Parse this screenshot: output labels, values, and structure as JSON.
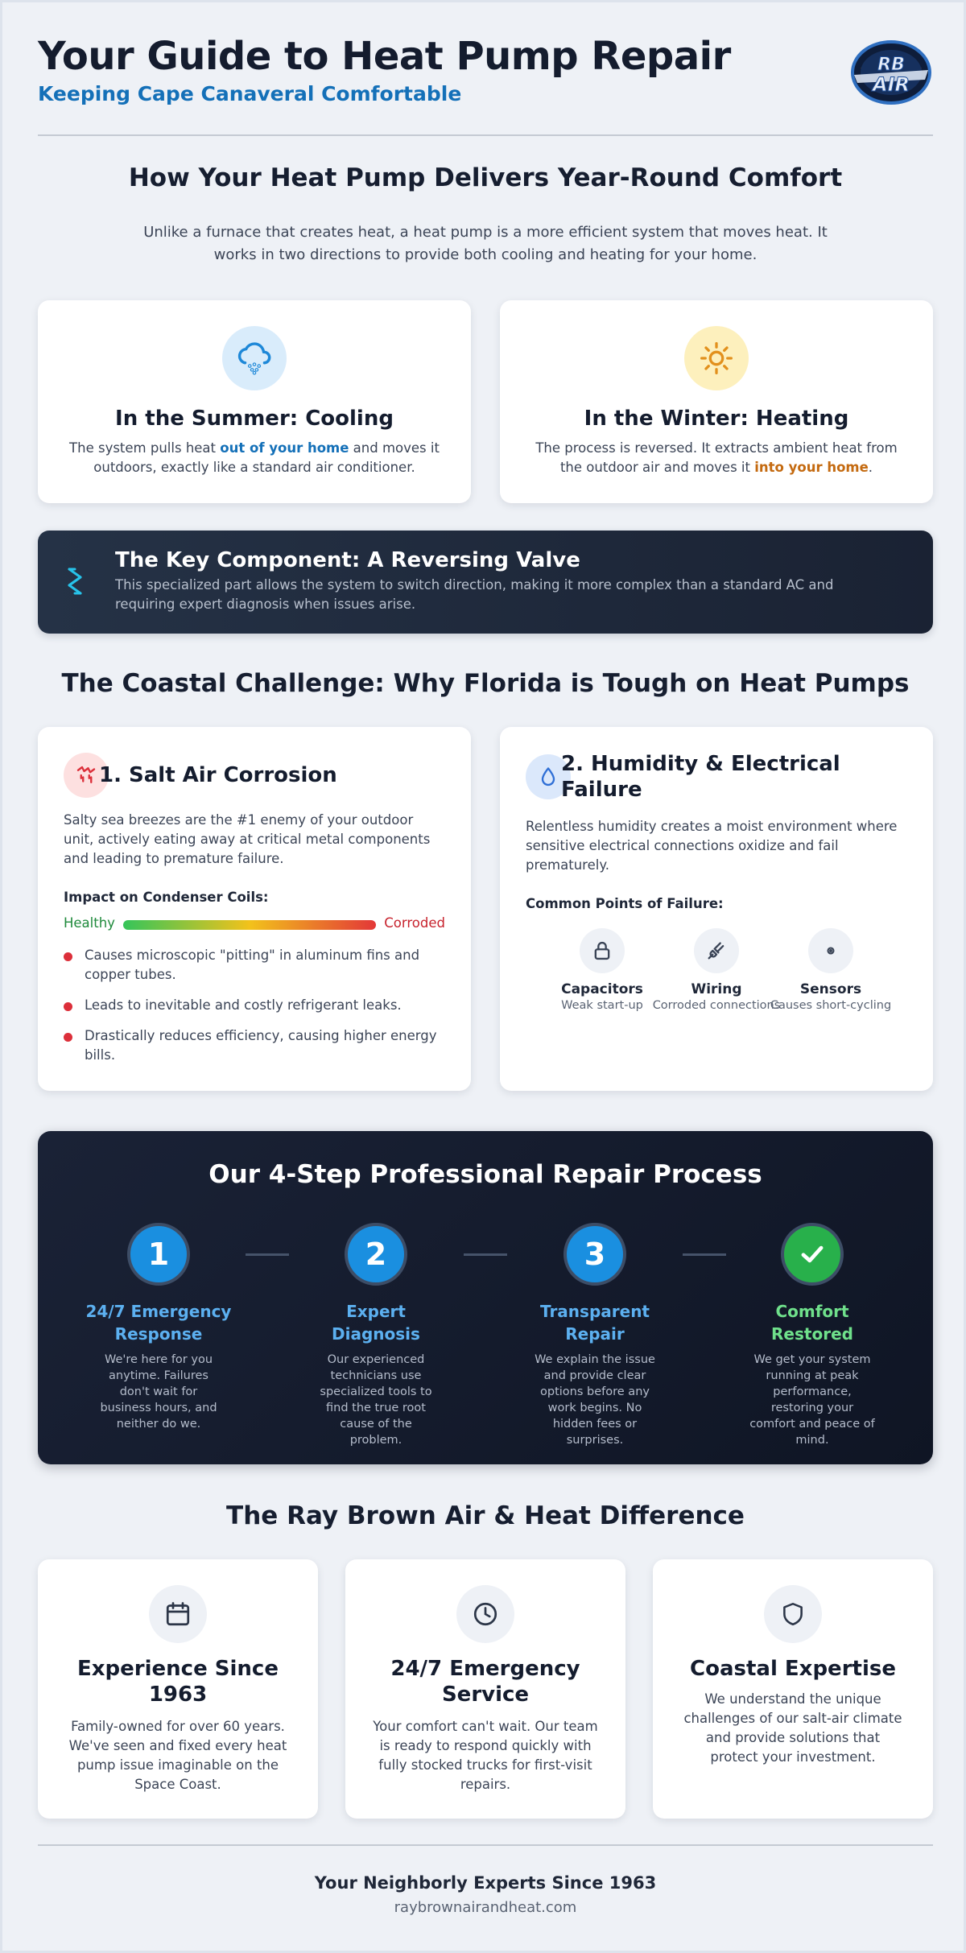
{
  "header": {
    "title": "Your Guide to Heat Pump Repair",
    "subtitle": "Keeping Cape Canaveral Comfortable",
    "logo_text": "RB AIR"
  },
  "how": {
    "title": "How Your Heat Pump Delivers Year-Round Comfort",
    "lead": "Unlike a furnace that creates heat, a heat pump is a more efficient system that moves heat. It works in two directions to provide both cooling and heating for your home.",
    "summer": {
      "icon": "cloud-snow-icon",
      "title": "In the Summer: Cooling",
      "text_before": "The system pulls heat ",
      "highlight": "out of your home",
      "text_after": " and moves it outdoors, exactly like a standard air conditioner."
    },
    "winter": {
      "icon": "sun-icon",
      "title": "In the Winter: Heating",
      "text_before": "The process is reversed. It extracts ambient heat from the outdoor air and moves it ",
      "highlight": "into your home",
      "text_after": "."
    },
    "valve": {
      "icon": "reversing-arrows-icon",
      "title": "The Key Component: A Reversing Valve",
      "text": "This specialized part allows the system to switch direction, making it more complex than a standard AC and requiring expert diagnosis when issues arise."
    }
  },
  "coastal": {
    "title": "The Coastal Challenge: Why Florida is Tough on Heat Pumps",
    "salt": {
      "icon": "corrosion-icon",
      "title": "1. Salt Air Corrosion",
      "text": "Salty sea breezes are the #1 enemy of your outdoor unit, actively eating away at critical metal components and leading to premature failure.",
      "impact_label": "Impact on Condenser Coils:",
      "scale_left": "Healthy",
      "scale_right": "Corroded",
      "bullets": [
        "Causes microscopic \"pitting\" in aluminum fins and copper tubes.",
        "Leads to inevitable and costly refrigerant leaks.",
        "Drastically reduces efficiency, causing higher energy bills."
      ]
    },
    "humidity": {
      "icon": "droplet-icon",
      "title": "2. Humidity & Electrical Failure",
      "text": "Relentless humidity creates a moist environment where sensitive electrical connections oxidize and fail prematurely.",
      "points_label": "Common Points of Failure:",
      "points": [
        {
          "icon": "lock-icon",
          "label": "Capacitors",
          "desc": "Weak start-up"
        },
        {
          "icon": "plug-icon",
          "label": "Wiring",
          "desc": "Corroded connections"
        },
        {
          "icon": "eye-icon",
          "label": "Sensors",
          "desc": "Causes short-cycling"
        }
      ]
    }
  },
  "process": {
    "title": "Our 4-Step Professional Repair Process",
    "steps": [
      {
        "num": "1",
        "label": "24/7 Emergency Response",
        "desc": "We're here for you anytime. Failures don't wait for business hours, and neither do we."
      },
      {
        "num": "2",
        "label": "Expert Diagnosis",
        "desc": "Our experienced technicians use specialized tools to find the true root cause of the problem."
      },
      {
        "num": "3",
        "label": "Transparent Repair",
        "desc": "We explain the issue and provide clear options before any work begins. No hidden fees or surprises."
      },
      {
        "num": "",
        "icon": "checkmark-icon",
        "label": "Comfort Restored",
        "desc": "We get your system running at peak performance, restoring your comfort and peace of mind."
      }
    ]
  },
  "difference": {
    "title": "The Ray Brown Air & Heat Difference",
    "items": [
      {
        "icon": "calendar-icon",
        "title": "Experience Since 1963",
        "desc": "Family-owned for over 60 years. We've seen and fixed every heat pump issue imaginable on the Space Coast."
      },
      {
        "icon": "clock-icon",
        "title": "24/7 Emergency Service",
        "desc": "Your comfort can't wait. Our team is ready to respond quickly with fully stocked trucks for first-visit repairs."
      },
      {
        "icon": "shield-icon",
        "title": "Coastal Expertise",
        "desc": "We understand the unique challenges of our salt-air climate and provide solutions that protect your investment."
      }
    ]
  },
  "footer": {
    "tagline": "Your Neighborly Experts Since 1963",
    "url": "raybrownairandheat.com"
  },
  "colors": {
    "accent_blue": "#1470b8",
    "accent_orange": "#c46a10",
    "danger": "#dc2f3a",
    "success": "#28b04b"
  }
}
